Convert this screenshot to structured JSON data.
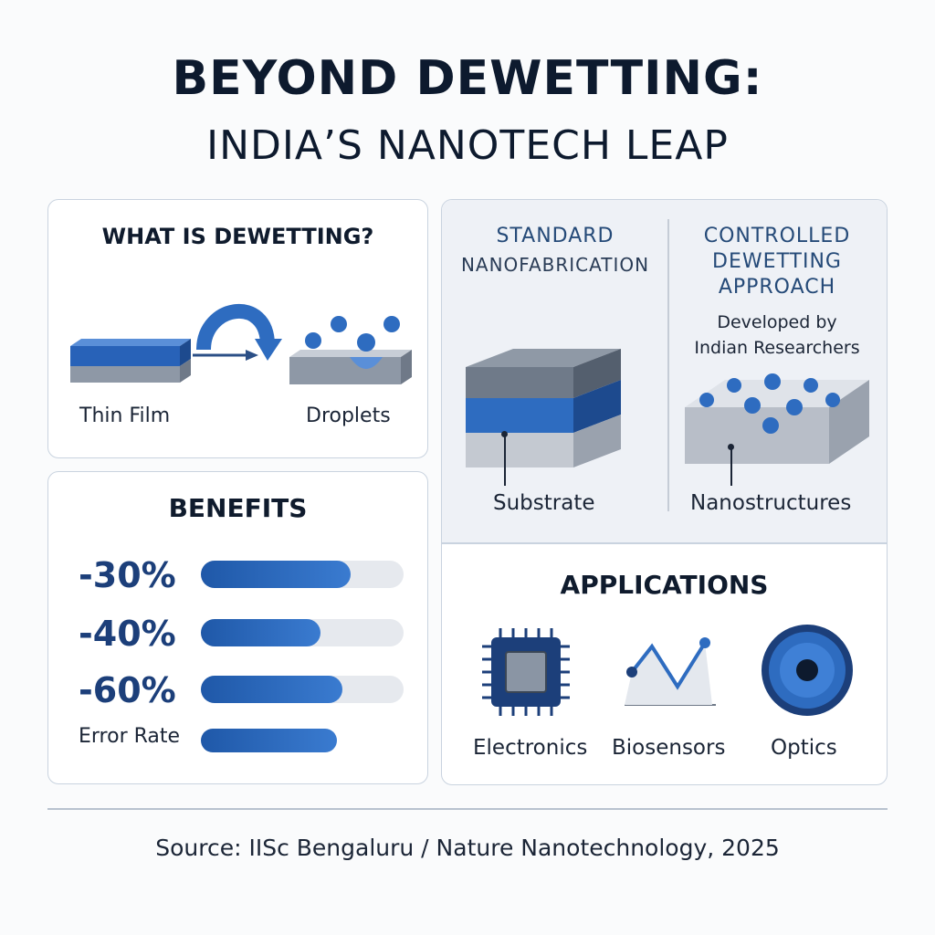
{
  "title": {
    "line1": "BEYOND DEWETTING:",
    "line2": "INDIA’S NANOTECH LEAP"
  },
  "dewetting": {
    "heading": "WHAT IS DEWETTING?",
    "thin_film_label": "Thin Film",
    "droplets_label": "Droplets"
  },
  "comparison": {
    "standard_line1": "STANDARD",
    "standard_line2": "NANOFABRICATION",
    "controlled_line1": "CONTROLLED",
    "controlled_line2": "DEWETTING",
    "controlled_line3": "APPROACH",
    "developed_line1": "Developed by",
    "developed_line2": "Indian Researchers",
    "substrate_label": "Substrate",
    "nanostructures_label": "Nanostructures"
  },
  "benefits": {
    "heading": "BENEFITS",
    "items": [
      {
        "label": "-30%",
        "fill_fraction": 0.74
      },
      {
        "label": "-40%",
        "fill_fraction": 0.59
      },
      {
        "label": "-60%",
        "fill_fraction": 0.7
      }
    ],
    "error_rate_label": "Error Rate",
    "error_rate_fill_fraction": 0.67
  },
  "applications": {
    "heading": "APPLICATIONS",
    "items": [
      "Electronics",
      "Biosensors",
      "Optics"
    ]
  },
  "source": "Source: IISc Bengaluru / Nature Nanotechnology, 2025",
  "colors": {
    "accent_blue": "#2e6cc0",
    "dark_navy": "#0d1a2e",
    "panel_border": "#c9d3df",
    "gray_block": "#7f8a99"
  }
}
